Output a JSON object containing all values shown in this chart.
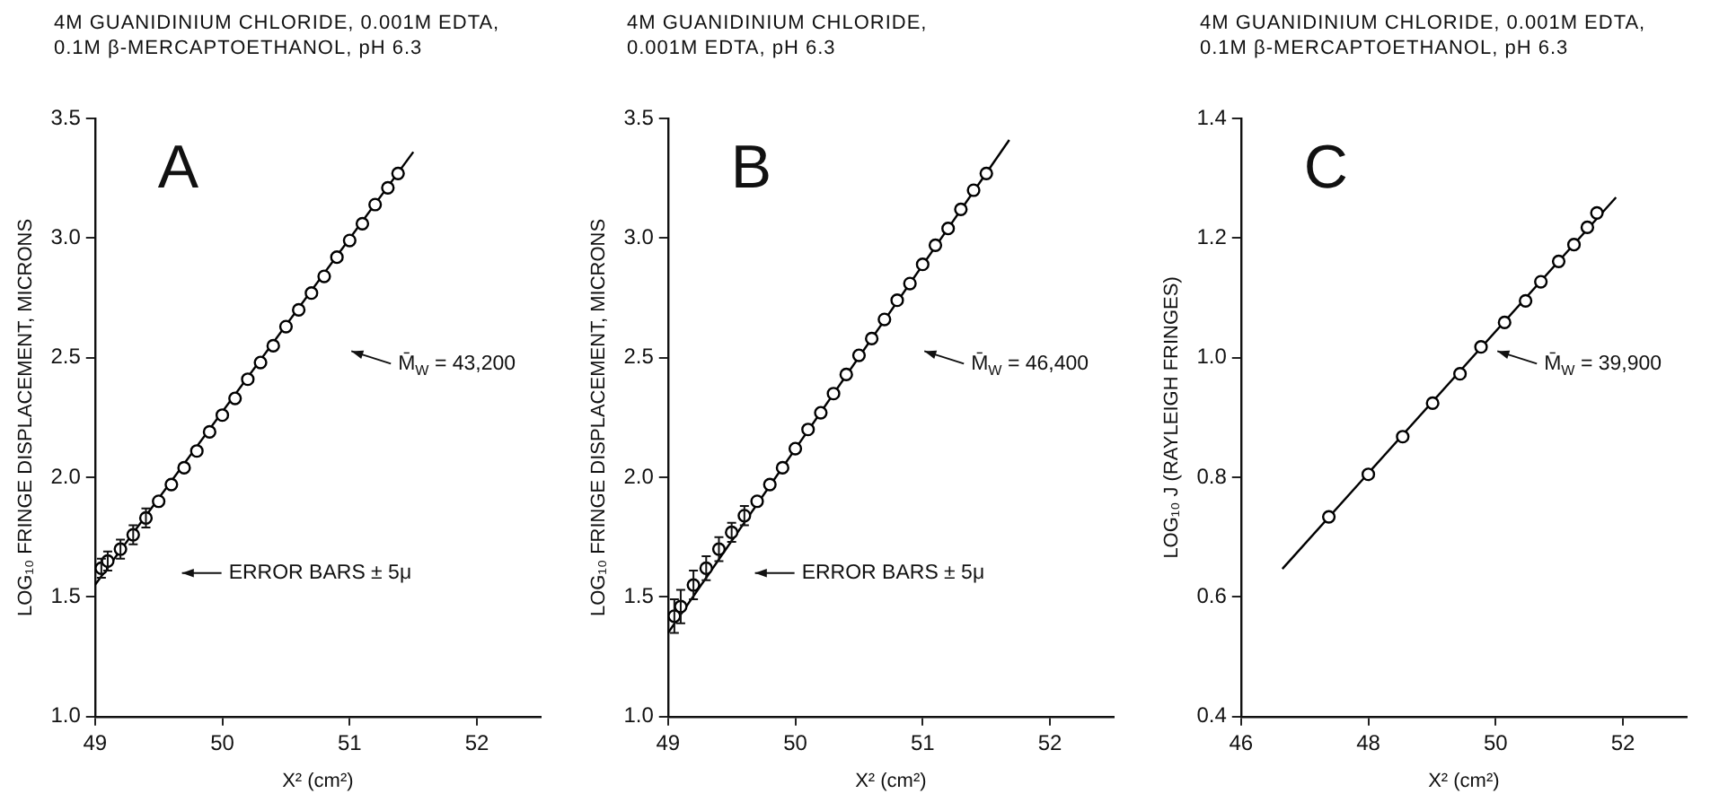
{
  "chart_data": [
    {
      "type": "scatter",
      "title": "4M GUANIDINIUM CHLORIDE, 0.001M EDTA,\n0.1M β-MERCAPTOETHANOL, pH 6.3",
      "xlabel": "X² (cm²)",
      "ylabel": "LOG₁₀ FRINGE DISPLACEMENT, MICRONS",
      "xlim": [
        49,
        52.5
      ],
      "xticks": [
        49,
        50,
        51,
        52
      ],
      "ylim": [
        1,
        3.5
      ],
      "yticks": [
        {
          "value": 1,
          "label": "1.0"
        },
        1.5,
        {
          "value": 2,
          "label": "2.0"
        },
        2.5,
        {
          "value": 3,
          "label": "3.0"
        },
        3.5
      ],
      "grid": false,
      "legend": false,
      "annotations": [
        "A",
        "M̄$_{W}$ = 43,200",
        "ERROR BARS ± 5μ"
      ],
      "series": [
        {
          "color": "#000000",
          "marker": "circle",
          "x": [
            49.05,
            49.1,
            49.2,
            49.3,
            49.4,
            49.5,
            49.6,
            49.7,
            49.8,
            49.9,
            50.0,
            50.1,
            50.2,
            50.3,
            50.4,
            50.5,
            50.6,
            50.7,
            50.8,
            50.9,
            51.0,
            51.1,
            51.2,
            51.3,
            51.38
          ],
          "values": [
            1.62,
            1.65,
            1.7,
            1.76,
            1.83,
            1.9,
            1.97,
            2.04,
            2.11,
            2.19,
            2.26,
            2.33,
            2.41,
            2.48,
            2.55,
            2.63,
            2.7,
            2.77,
            2.84,
            2.92,
            2.99,
            3.06,
            3.14,
            3.21,
            3.27
          ],
          "errors": [
            0.04,
            0.04,
            0.04,
            0.04,
            0.04,
            null,
            null,
            null,
            null,
            null,
            null,
            null,
            null,
            null,
            null,
            null,
            null,
            null,
            null,
            null,
            null,
            null,
            null,
            null,
            null
          ]
        },
        {
          "type": "line",
          "color": "#000000",
          "marker": "none",
          "x": [
            49,
            51.5
          ],
          "values": [
            1.55,
            3.36
          ]
        }
      ]
    },
    {
      "type": "scatter",
      "title": "4M GUANIDINIUM CHLORIDE,\n0.001M EDTA, pH 6.3",
      "xlabel": "X² (cm²)",
      "ylabel": "LOG₁₀ FRINGE DISPLACEMENT, MICRONS",
      "xlim": [
        49,
        52.5
      ],
      "xticks": [
        49,
        50,
        51,
        52
      ],
      "ylim": [
        1,
        3.5
      ],
      "yticks": [
        {
          "value": 1,
          "label": "1.0"
        },
        1.5,
        {
          "value": 2,
          "label": "2.0"
        },
        2.5,
        {
          "value": 3,
          "label": "3.0"
        },
        3.5
      ],
      "grid": false,
      "legend": false,
      "annotations": [
        "B",
        "M̄$_{W}$ = 46,400",
        "ERROR BARS ± 5μ"
      ],
      "series": [
        {
          "color": "#000000",
          "marker": "circle",
          "x": [
            49.05,
            49.1,
            49.2,
            49.3,
            49.4,
            49.5,
            49.6,
            49.7,
            49.8,
            49.9,
            50.0,
            50.1,
            50.2,
            50.3,
            50.4,
            50.5,
            50.6,
            50.7,
            50.8,
            50.9,
            51.0,
            51.1,
            51.2,
            51.3,
            51.4,
            51.5
          ],
          "values": [
            1.42,
            1.46,
            1.55,
            1.62,
            1.7,
            1.77,
            1.84,
            1.9,
            1.97,
            2.04,
            2.12,
            2.2,
            2.27,
            2.35,
            2.43,
            2.51,
            2.58,
            2.66,
            2.74,
            2.81,
            2.89,
            2.97,
            3.04,
            3.12,
            3.2,
            3.27
          ],
          "errors": [
            0.07,
            0.07,
            0.06,
            0.05,
            0.05,
            0.04,
            0.04,
            null,
            null,
            null,
            null,
            null,
            null,
            null,
            null,
            null,
            null,
            null,
            null,
            null,
            null,
            null,
            null,
            null,
            null,
            null
          ]
        },
        {
          "type": "line",
          "color": "#000000",
          "marker": "none",
          "x": [
            49,
            51.68
          ],
          "values": [
            1.35,
            3.41
          ]
        }
      ]
    },
    {
      "type": "scatter",
      "title": "4M GUANIDINIUM CHLORIDE, 0.001M EDTA,\n0.1M β-MERCAPTOETHANOL, pH 6.3",
      "xlabel": "X² (cm²)",
      "ylabel": "LOG₁₀ J (RAYLEIGH FRINGES)",
      "xlim": [
        46,
        53
      ],
      "xticks": [
        46,
        48,
        50,
        52
      ],
      "ylim": [
        0.4,
        1.4
      ],
      "yticks": [
        0.4,
        0.6,
        0.8,
        {
          "value": 1,
          "label": "1.0"
        },
        1.2,
        1.4
      ],
      "grid": false,
      "legend": false,
      "annotations": [
        "C",
        "M̄$_{W}$ = 39,900"
      ],
      "series": [
        {
          "color": "#000000",
          "marker": "circle",
          "x": [
            47.38,
            48.0,
            48.54,
            49.01,
            49.44,
            49.77,
            50.14,
            50.47,
            50.71,
            50.99,
            51.23,
            51.44,
            51.59
          ],
          "values": [
            0.734,
            0.805,
            0.868,
            0.924,
            0.973,
            1.018,
            1.059,
            1.095,
            1.127,
            1.161,
            1.189,
            1.218,
            1.242
          ]
        },
        {
          "type": "line",
          "color": "#000000",
          "marker": "none",
          "x": [
            46.65,
            51.89
          ],
          "values": [
            0.647,
            1.268
          ]
        }
      ]
    }
  ]
}
